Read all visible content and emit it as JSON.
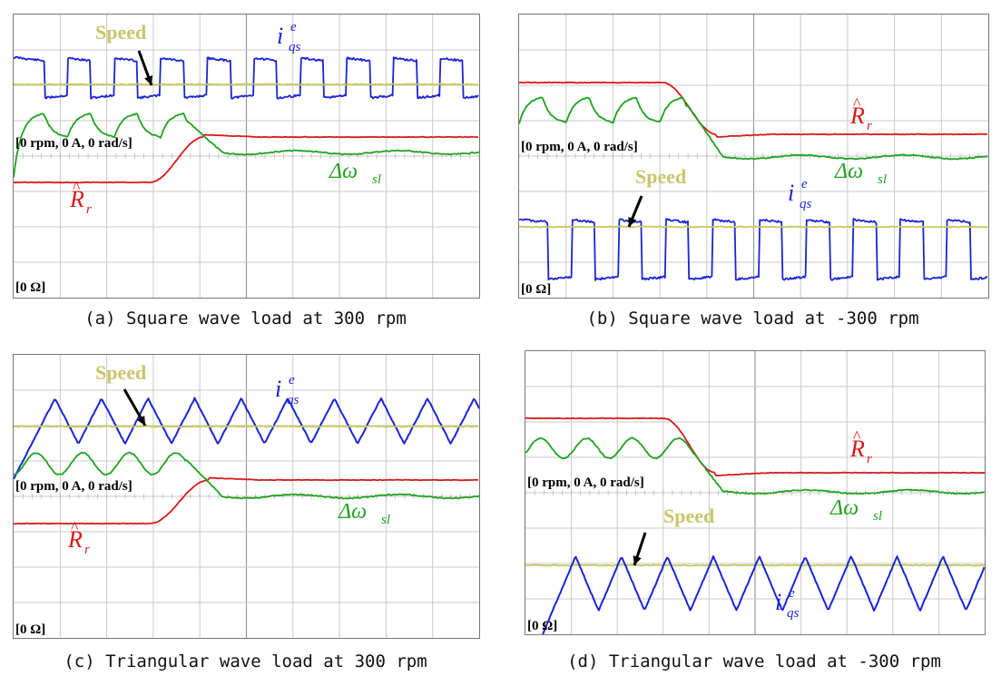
{
  "colors": {
    "speed": "#c8c85a",
    "iqs": "#1a24d6",
    "rr": "#d81a1a",
    "dw": "#1ea31e",
    "label_speed": "#c9c46a"
  },
  "labels": {
    "speed": "Speed",
    "iqs_main": "i",
    "iqs_sub": "qs",
    "iqs_sup": "e",
    "rr_main": "R",
    "rr_hat": "^",
    "rr_sub": "r",
    "dw_main": "Δω",
    "dw_sub": "sl",
    "ref_top": "[0 rpm, 0 A, 0 rad/s]",
    "ref_bottom": "[0 Ω]"
  },
  "captions": {
    "a": "(a) Square wave load at 300 rpm",
    "b": "(b) Square wave load at -300 rpm",
    "c": "(c) Triangular wave load at 300 rpm",
    "d": "(d) Triangular wave load at -300 rpm"
  },
  "chart_data": [
    {
      "type": "line",
      "panel": "a",
      "title": "(a) Square wave load at 300 rpm",
      "series": [
        {
          "name": "Speed",
          "shape": "flat"
        },
        {
          "name": "i_qs^e",
          "shape": "square",
          "periods": 10
        },
        {
          "name": "R_r (estimated)",
          "shape": "step-up"
        },
        {
          "name": "Δω_sl",
          "shape": "decaying-ripple"
        }
      ]
    },
    {
      "type": "line",
      "panel": "b",
      "title": "(b) Square wave load at -300 rpm",
      "series": [
        {
          "name": "Speed",
          "shape": "flat"
        },
        {
          "name": "i_qs^e",
          "shape": "square",
          "periods": 10
        },
        {
          "name": "R_r (estimated)",
          "shape": "step-down"
        },
        {
          "name": "Δω_sl",
          "shape": "decaying-ripple"
        }
      ]
    },
    {
      "type": "line",
      "panel": "c",
      "title": "(c) Triangular wave load at 300 rpm",
      "series": [
        {
          "name": "Speed",
          "shape": "flat"
        },
        {
          "name": "i_qs^e",
          "shape": "triangle",
          "periods": 10
        },
        {
          "name": "R_r (estimated)",
          "shape": "step-up"
        },
        {
          "name": "Δω_sl",
          "shape": "decaying-ripple"
        }
      ]
    },
    {
      "type": "line",
      "panel": "d",
      "title": "(d) Triangular wave load at -300 rpm",
      "series": [
        {
          "name": "Speed",
          "shape": "flat"
        },
        {
          "name": "i_qs^e",
          "shape": "triangle",
          "periods": 10
        },
        {
          "name": "R_r (estimated)",
          "shape": "step-down"
        },
        {
          "name": "Δω_sl",
          "shape": "decaying-ripple"
        }
      ]
    }
  ]
}
